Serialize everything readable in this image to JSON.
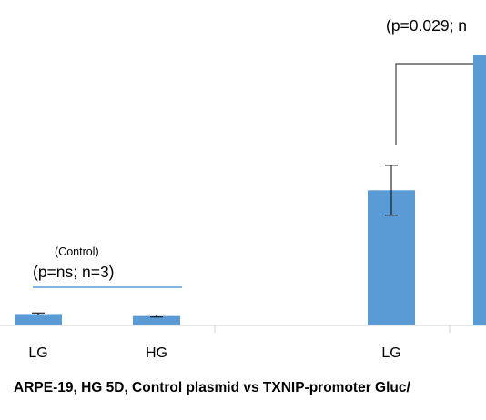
{
  "chart_data": {
    "type": "bar",
    "title": "ARPE-19, HG 5D, Control plasmid vs TXNIP-promoter Gluc/",
    "xlabel": "",
    "ylabel": "",
    "ylim": [
      0,
      100
    ],
    "categories": [
      "LG",
      "HG",
      "",
      "LG"
    ],
    "values": [
      4.5,
      3.7,
      0,
      53.2
    ],
    "errors": [
      0.4,
      0.4,
      0,
      9.8
    ],
    "colors": {
      "bar": "#5b9bd5",
      "axis": "#d9d9d9",
      "bracket": "#404040",
      "control_line": "#5b9bd5"
    },
    "grid": false,
    "legend": "none",
    "annotations": {
      "control_label": "(Control)",
      "control_stat": "(p=ns; n=3)",
      "txnip_stat": "(p=0.029; n"
    }
  }
}
